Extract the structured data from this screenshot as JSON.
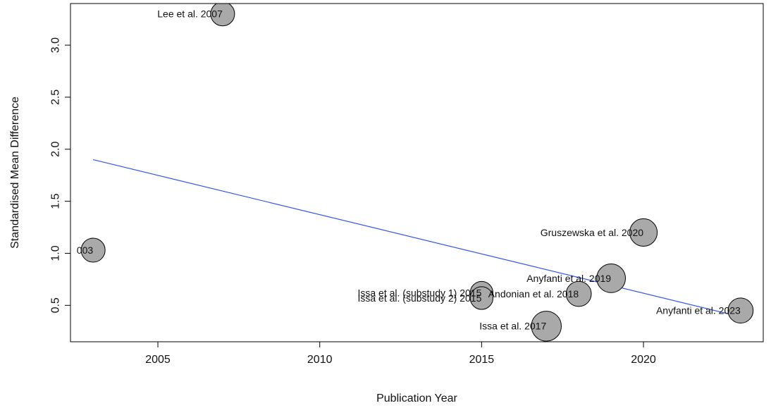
{
  "chart_data": {
    "type": "scatter",
    "title": "",
    "xlabel": "Publication Year",
    "ylabel": "Standardised Mean Difference",
    "xlim": [
      2002.3,
      2023.7
    ],
    "ylim": [
      0.15,
      3.4
    ],
    "x_ticks": [
      2005,
      2010,
      2015,
      2020
    ],
    "y_ticks": [
      0.5,
      1.0,
      1.5,
      2.0,
      2.5,
      3.0
    ],
    "x_tick_labels": [
      "2005",
      "2010",
      "2015",
      "2020"
    ],
    "y_tick_labels": [
      "0.5",
      "1.0",
      "1.5",
      "2.0",
      "2.5",
      "3.0"
    ],
    "grid": false,
    "colors": {
      "point_fill": "#a9a9a9",
      "point_stroke": "#000000",
      "trend_line": "#3355ee"
    },
    "points": [
      {
        "label": "003",
        "x": 2003,
        "y": 1.03,
        "weight": 1.0
      },
      {
        "label": "Lee et al. 2007",
        "x": 2007,
        "y": 3.3,
        "weight": 1.0
      },
      {
        "label": "Issa et al. (substudy 1) 2015",
        "x": 2015,
        "y": 0.62,
        "weight": 0.95
      },
      {
        "label": "Issa et al. (substudy 2) 2015",
        "x": 2015,
        "y": 0.57,
        "weight": 0.95
      },
      {
        "label": "Issa et al. 2017",
        "x": 2017,
        "y": 0.3,
        "weight": 1.25
      },
      {
        "label": "Andonian et al. 2018",
        "x": 2018,
        "y": 0.61,
        "weight": 1.05
      },
      {
        "label": "Anyfanti et al. 2019",
        "x": 2019,
        "y": 0.76,
        "weight": 1.2
      },
      {
        "label": "Gruszewska et al. 2020",
        "x": 2020,
        "y": 1.2,
        "weight": 1.15
      },
      {
        "label": "Anyfanti et al. 2023",
        "x": 2023,
        "y": 0.45,
        "weight": 1.05
      }
    ],
    "regression_line": {
      "x": [
        2003,
        2023
      ],
      "y": [
        1.9,
        0.39
      ]
    }
  }
}
